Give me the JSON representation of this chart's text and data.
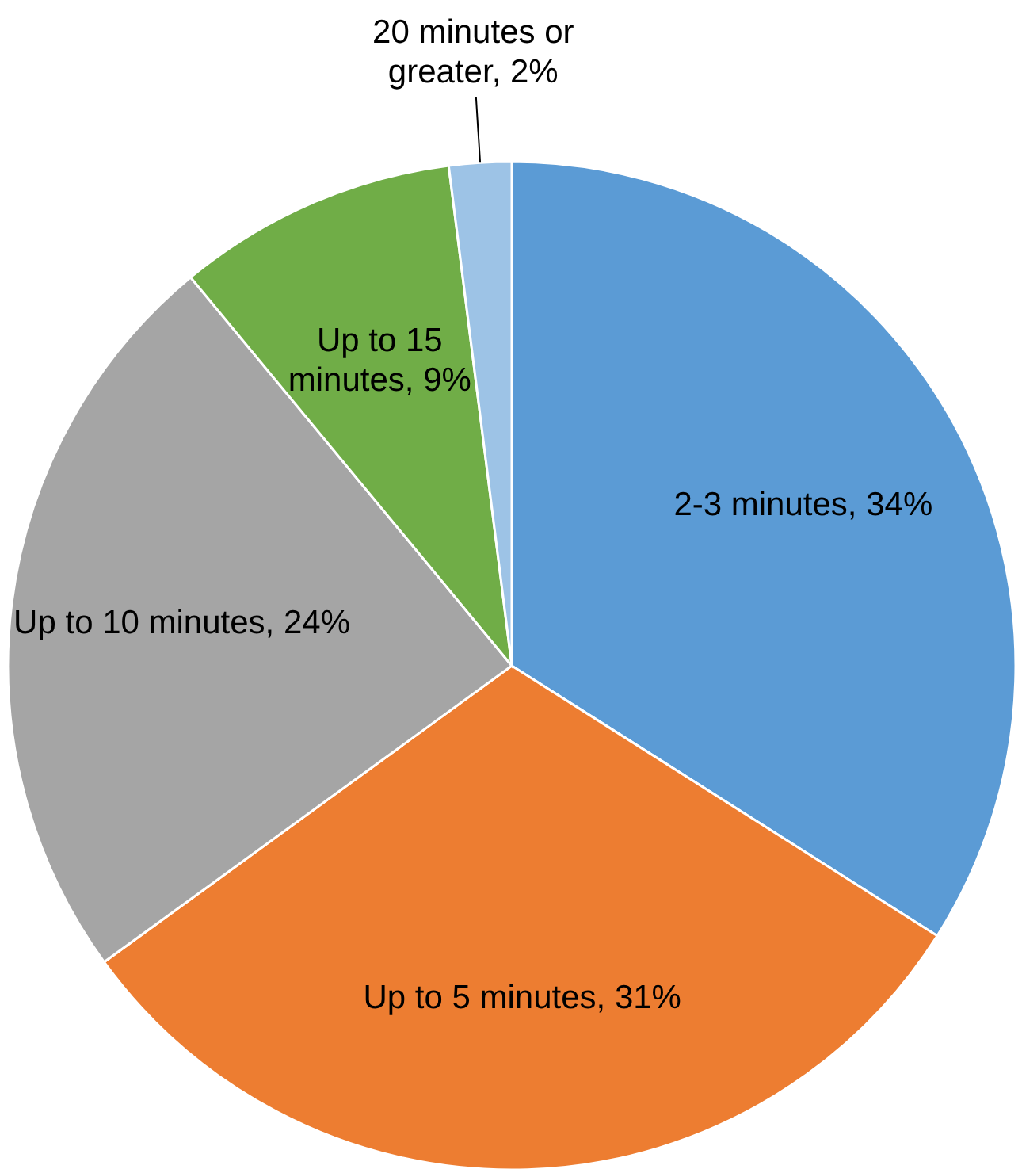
{
  "chart_data": {
    "type": "pie",
    "categories": [
      "2-3 minutes",
      "Up to 5 minutes",
      "Up to 10 minutes",
      "Up to 15 minutes",
      "20 minutes or greater"
    ],
    "values": [
      34,
      31,
      24,
      9,
      2
    ],
    "value_labels": [
      "34%",
      "31%",
      "24%",
      "9%",
      "2%"
    ],
    "colors": [
      "#5b9bd5",
      "#ed7d31",
      "#a5a5a5",
      "#70ad47",
      "#9dc3e6"
    ]
  }
}
